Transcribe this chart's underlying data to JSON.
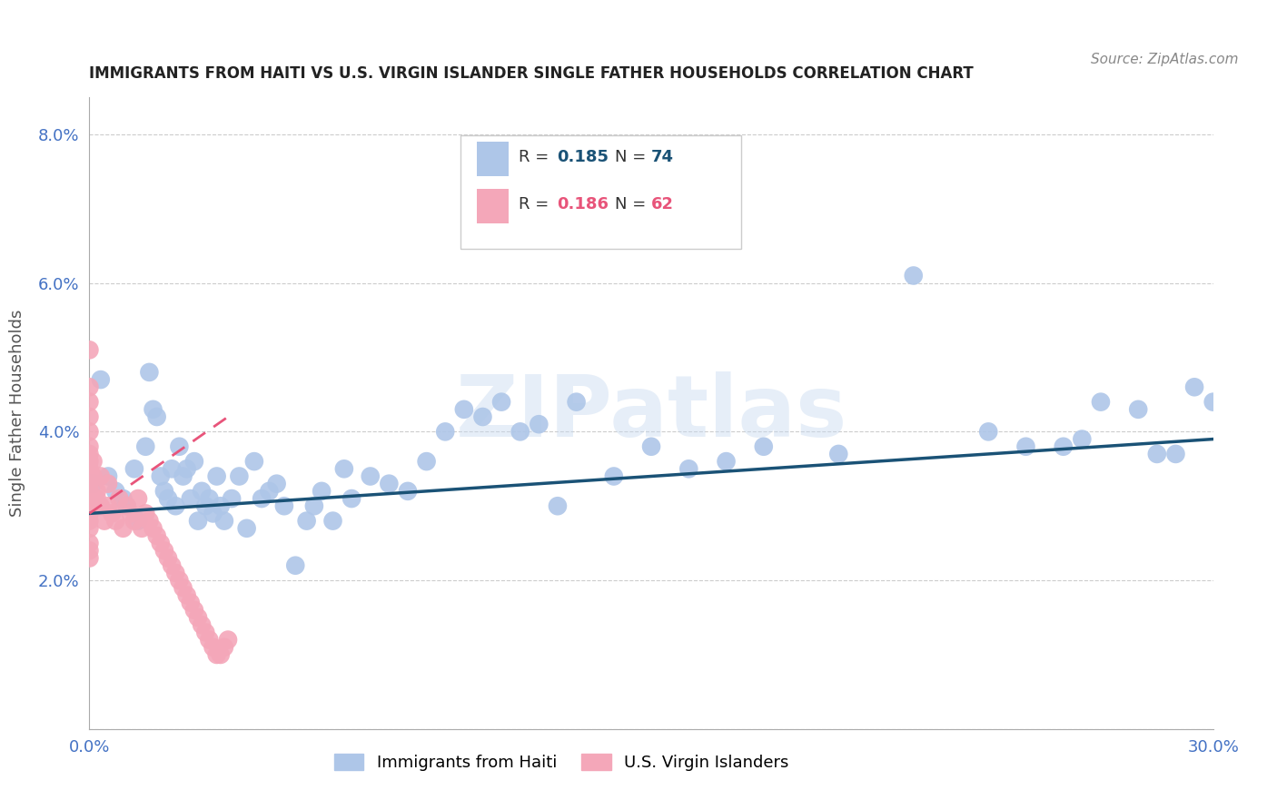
{
  "title": "IMMIGRANTS FROM HAITI VS U.S. VIRGIN ISLANDER SINGLE FATHER HOUSEHOLDS CORRELATION CHART",
  "source": "Source: ZipAtlas.com",
  "ylabel": "Single Father Households",
  "xlim": [
    0.0,
    0.3
  ],
  "ylim": [
    0.0,
    0.085
  ],
  "blue_R": 0.185,
  "blue_N": 74,
  "pink_R": 0.186,
  "pink_N": 62,
  "blue_color": "#aec6e8",
  "pink_color": "#f4a7b9",
  "blue_line_color": "#1a5276",
  "pink_line_color": "#e8547a",
  "watermark": "ZIPatlas",
  "blue_points_x": [
    0.001,
    0.003,
    0.005,
    0.007,
    0.009,
    0.01,
    0.012,
    0.013,
    0.015,
    0.016,
    0.017,
    0.018,
    0.019,
    0.02,
    0.021,
    0.022,
    0.023,
    0.024,
    0.025,
    0.026,
    0.027,
    0.028,
    0.029,
    0.03,
    0.031,
    0.032,
    0.033,
    0.034,
    0.035,
    0.036,
    0.038,
    0.04,
    0.042,
    0.044,
    0.046,
    0.048,
    0.05,
    0.052,
    0.055,
    0.058,
    0.06,
    0.062,
    0.065,
    0.068,
    0.07,
    0.075,
    0.08,
    0.085,
    0.09,
    0.095,
    0.1,
    0.105,
    0.11,
    0.115,
    0.12,
    0.125,
    0.13,
    0.14,
    0.15,
    0.16,
    0.17,
    0.18,
    0.2,
    0.22,
    0.24,
    0.25,
    0.26,
    0.265,
    0.27,
    0.28,
    0.285,
    0.29,
    0.295,
    0.3
  ],
  "blue_points_y": [
    0.033,
    0.047,
    0.034,
    0.032,
    0.031,
    0.03,
    0.035,
    0.028,
    0.038,
    0.048,
    0.043,
    0.042,
    0.034,
    0.032,
    0.031,
    0.035,
    0.03,
    0.038,
    0.034,
    0.035,
    0.031,
    0.036,
    0.028,
    0.032,
    0.03,
    0.031,
    0.029,
    0.034,
    0.03,
    0.028,
    0.031,
    0.034,
    0.027,
    0.036,
    0.031,
    0.032,
    0.033,
    0.03,
    0.022,
    0.028,
    0.03,
    0.032,
    0.028,
    0.035,
    0.031,
    0.034,
    0.033,
    0.032,
    0.036,
    0.04,
    0.043,
    0.042,
    0.044,
    0.04,
    0.041,
    0.03,
    0.044,
    0.034,
    0.038,
    0.035,
    0.036,
    0.038,
    0.037,
    0.061,
    0.04,
    0.038,
    0.038,
    0.039,
    0.044,
    0.043,
    0.037,
    0.037,
    0.046,
    0.044
  ],
  "pink_points_x": [
    0.0,
    0.0,
    0.0,
    0.0,
    0.0,
    0.0,
    0.0,
    0.0,
    0.0,
    0.0,
    0.0,
    0.0,
    0.0,
    0.0,
    0.0,
    0.0,
    0.0,
    0.0,
    0.0,
    0.0,
    0.001,
    0.001,
    0.001,
    0.002,
    0.002,
    0.003,
    0.003,
    0.004,
    0.005,
    0.005,
    0.006,
    0.007,
    0.008,
    0.009,
    0.01,
    0.011,
    0.012,
    0.013,
    0.014,
    0.015,
    0.016,
    0.017,
    0.018,
    0.019,
    0.02,
    0.021,
    0.022,
    0.023,
    0.024,
    0.025,
    0.026,
    0.027,
    0.028,
    0.029,
    0.03,
    0.031,
    0.032,
    0.033,
    0.034,
    0.035,
    0.036,
    0.037
  ],
  "pink_points_y": [
    0.051,
    0.046,
    0.044,
    0.042,
    0.04,
    0.038,
    0.037,
    0.036,
    0.035,
    0.034,
    0.033,
    0.032,
    0.031,
    0.03,
    0.029,
    0.028,
    0.027,
    0.025,
    0.024,
    0.023,
    0.036,
    0.034,
    0.03,
    0.032,
    0.031,
    0.034,
    0.03,
    0.028,
    0.033,
    0.03,
    0.029,
    0.028,
    0.031,
    0.027,
    0.03,
    0.029,
    0.028,
    0.031,
    0.027,
    0.029,
    0.028,
    0.027,
    0.026,
    0.025,
    0.024,
    0.023,
    0.022,
    0.021,
    0.02,
    0.019,
    0.018,
    0.017,
    0.016,
    0.015,
    0.014,
    0.013,
    0.012,
    0.011,
    0.01,
    0.01,
    0.011,
    0.012
  ],
  "blue_line_x": [
    0.0,
    0.3
  ],
  "blue_line_y": [
    0.029,
    0.039
  ],
  "pink_line_x": [
    0.0,
    0.037
  ],
  "pink_line_y": [
    0.029,
    0.042
  ],
  "y_ticks": [
    0.0,
    0.02,
    0.04,
    0.06,
    0.08
  ],
  "y_tick_labels": [
    "",
    "2.0%",
    "4.0%",
    "6.0%",
    "8.0%"
  ],
  "x_ticks": [
    0.0,
    0.05,
    0.1,
    0.15,
    0.2,
    0.25,
    0.3
  ],
  "x_tick_labels": [
    "0.0%",
    "",
    "",
    "",
    "",
    "",
    "30.0%"
  ]
}
